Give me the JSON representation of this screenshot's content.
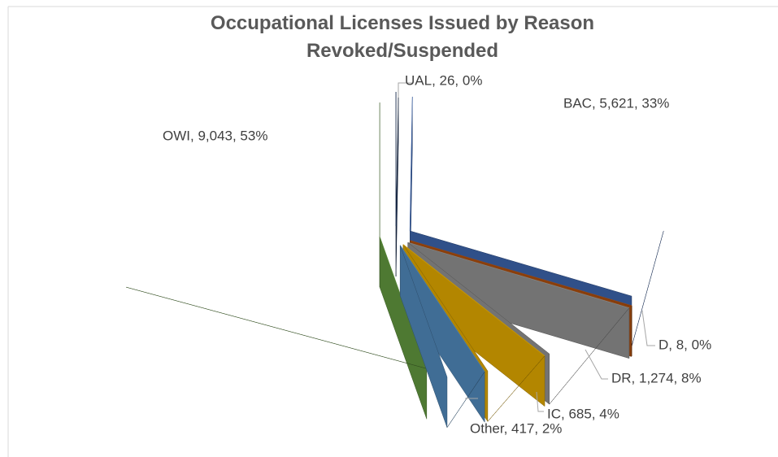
{
  "chart_data": {
    "type": "pie3d",
    "title": "Occupational Licenses Issued by Reason Revoked/Suspended",
    "values": [
      26,
      5621,
      8,
      1274,
      685,
      417,
      9043
    ],
    "value_labels": [
      "UAL, 26, 0%",
      "BAC, 5,621, 33%",
      "D, 8, 0%",
      "DR, 1,274, 8%",
      "IC, 685, 4%",
      "Other, 417, 2%",
      "OWI, 9,043, 53%"
    ],
    "colors": [
      "#203864",
      "#4472c4",
      "#c55a11",
      "#a5a5a5",
      "#ffc000",
      "#5b9bd5",
      "#70ad47"
    ]
  }
}
